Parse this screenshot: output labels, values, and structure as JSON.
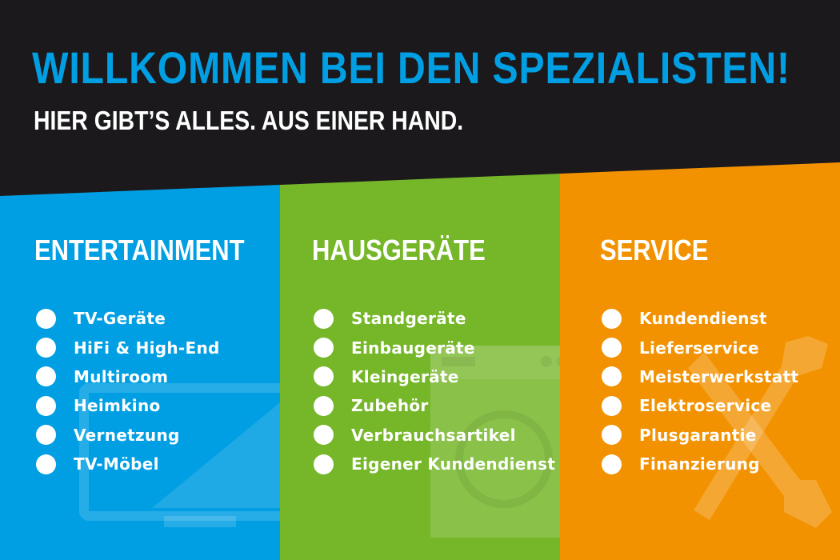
{
  "header": {
    "title": "WILLKOMMEN BEI DEN SPEZIALISTEN!",
    "subtitle": "HIER GIBT’S ALLES. AUS EINER HAND."
  },
  "colors": {
    "background": "#1b191c",
    "entertainment": "#009fe3",
    "hausgeraete": "#76b72a",
    "service": "#f39200"
  },
  "columns": [
    {
      "heading": "ENTERTAINMENT",
      "icon": "tv-icon",
      "items": [
        "TV-Geräte",
        "HiFi & High-End",
        "Multiroom",
        "Heimkino",
        "Vernetzung",
        "TV-Möbel"
      ]
    },
    {
      "heading": "HAUSGERÄTE",
      "icon": "washing-machine-icon",
      "items": [
        "Standgeräte",
        "Einbaugeräte",
        "Kleingeräte",
        "Zubehör",
        "Verbrauchsartikel",
        "Eigener Kundendienst"
      ]
    },
    {
      "heading": "SERVICE",
      "icon": "tools-icon",
      "items": [
        "Kundendienst",
        "Lieferservice",
        "Meisterwerkstatt",
        "Elektroservice",
        "Plusgarantie",
        "Finanzierung"
      ]
    }
  ]
}
